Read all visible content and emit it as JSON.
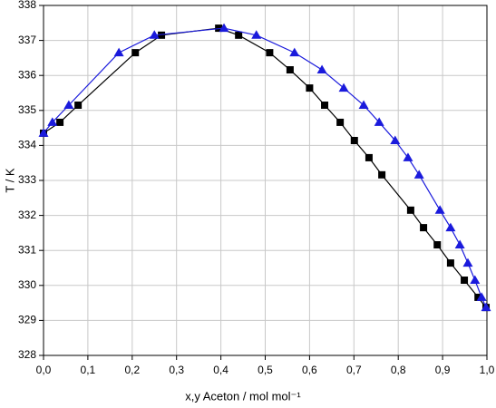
{
  "chart_data": {
    "type": "line",
    "x_label": "x,y Aceton / mol mol⁻¹",
    "y_label": "T / K",
    "xlim": [
      0,
      1
    ],
    "ylim": [
      328,
      338
    ],
    "xticks": [
      {
        "value": 0,
        "label": "0,0"
      },
      {
        "value": 0.1,
        "label": "0,1"
      },
      {
        "value": 0.2,
        "label": "0,2"
      },
      {
        "value": 0.3,
        "label": "0,3"
      },
      {
        "value": 0.4,
        "label": "0,4"
      },
      {
        "value": 0.5,
        "label": "0,5"
      },
      {
        "value": 0.6,
        "label": "0,6"
      },
      {
        "value": 0.7,
        "label": "0,7"
      },
      {
        "value": 0.8,
        "label": "0,8"
      },
      {
        "value": 0.9,
        "label": "0,9"
      },
      {
        "value": 1,
        "label": "1,0"
      }
    ],
    "yticks": [
      328,
      329,
      330,
      331,
      332,
      333,
      334,
      335,
      336,
      337,
      338
    ],
    "grid": true,
    "series": [
      {
        "color": "#000000",
        "marker": "square",
        "x": [
          0.0,
          0.037,
          0.078,
          0.207,
          0.266,
          0.395,
          0.44,
          0.51,
          0.556,
          0.6,
          0.634,
          0.669,
          0.701,
          0.734,
          0.763,
          0.828,
          0.857,
          0.888,
          0.918,
          0.949,
          0.98,
          0.998
        ],
        "values": [
          334.35,
          334.66,
          335.15,
          336.65,
          337.15,
          337.35,
          337.15,
          336.65,
          336.16,
          335.64,
          335.15,
          334.66,
          334.14,
          333.65,
          333.16,
          332.15,
          331.65,
          331.16,
          330.64,
          330.15,
          329.66,
          329.37
        ]
      },
      {
        "color": "#1a1adc",
        "marker": "triangle",
        "x": [
          0.0,
          0.02,
          0.057,
          0.17,
          0.25,
          0.407,
          0.48,
          0.566,
          0.628,
          0.677,
          0.722,
          0.757,
          0.793,
          0.822,
          0.847,
          0.894,
          0.918,
          0.939,
          0.957,
          0.973,
          0.988,
          0.998
        ],
        "values": [
          334.35,
          334.66,
          335.15,
          336.65,
          337.15,
          337.35,
          337.15,
          336.65,
          336.16,
          335.64,
          335.15,
          334.66,
          334.14,
          333.65,
          333.16,
          332.15,
          331.65,
          331.16,
          330.64,
          330.15,
          329.66,
          329.37
        ]
      }
    ]
  }
}
